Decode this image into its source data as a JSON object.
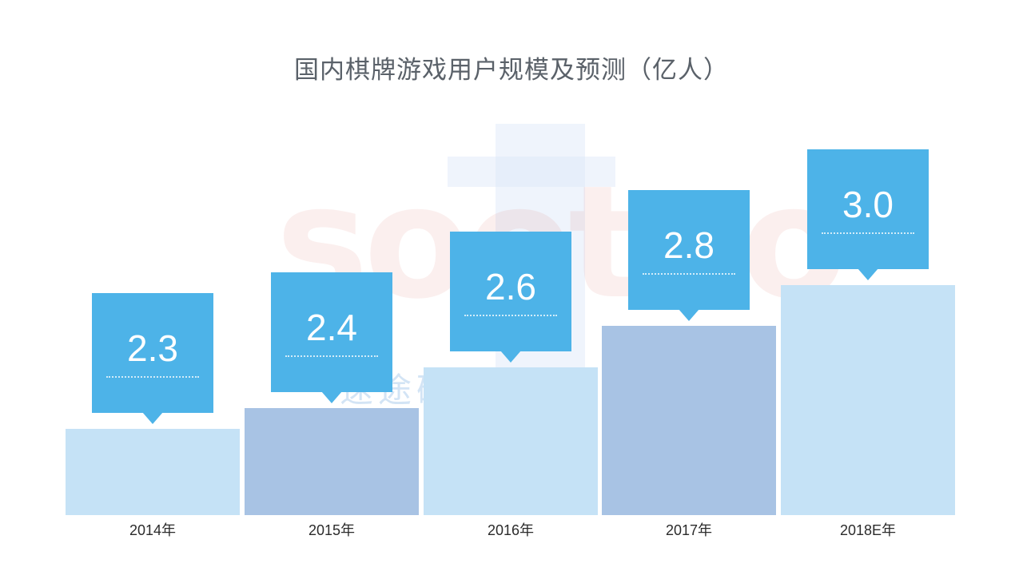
{
  "chart_data": {
    "type": "bar",
    "title": "国内棋牌游戏用户规模及预测（亿人）",
    "categories": [
      "2014年",
      "2015年",
      "2016年",
      "2017年",
      "2018E年"
    ],
    "values": [
      2.3,
      2.4,
      2.6,
      2.8,
      3.0
    ],
    "xlabel": "",
    "ylabel": "",
    "unit": "亿人",
    "ylim": [
      2.0,
      3.2
    ],
    "grid": false,
    "legend": false,
    "value_labels": [
      "2.3",
      "2.4",
      "2.6",
      "2.8",
      "3.0"
    ],
    "colors": {
      "bar_light": "#c5e2f6",
      "bar_medium": "#a8c3e4",
      "callout": "#4db3e8",
      "callout_text": "#ffffff",
      "title_text": "#5a6169",
      "axis_text": "#2b2b2b"
    }
  },
  "watermark": {
    "text_latin": "sootoo",
    "text_cn": "速途研究院"
  }
}
